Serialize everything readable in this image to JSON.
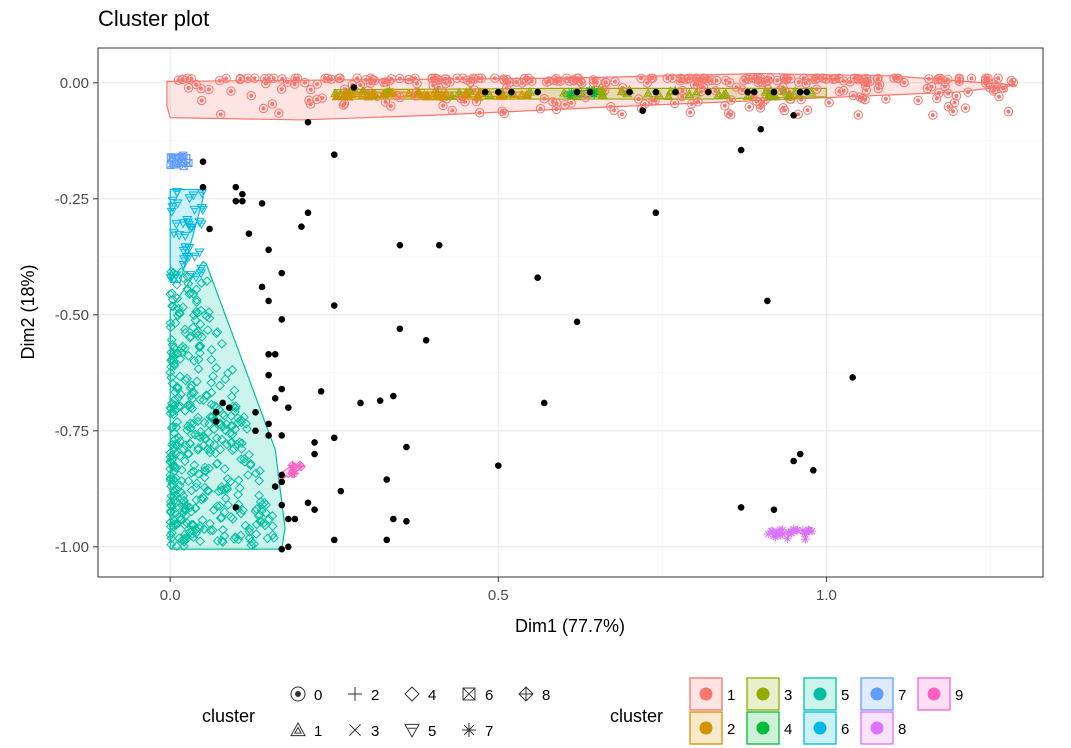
{
  "chart_data": {
    "type": "scatter",
    "title": "Cluster plot",
    "xlabel": "Dim1 (77.7%)",
    "ylabel": "Dim2 (18%)",
    "xlim": [
      -0.11,
      1.33
    ],
    "ylim": [
      -1.065,
      0.075
    ],
    "x_ticks": [
      0.0,
      0.5,
      1.0
    ],
    "x_tick_labels": [
      "0.0",
      "0.5",
      "1.0"
    ],
    "y_ticks": [
      0.0,
      -0.25,
      -0.5,
      -0.75,
      -1.0
    ],
    "y_tick_labels": [
      "0.00",
      "-0.25",
      "-0.50",
      "-0.75",
      "-1.00"
    ],
    "grid": true,
    "legend_placement": "bottom",
    "legend_shape": {
      "title": "cluster",
      "entries": [
        {
          "label": "0",
          "shape": "circle-dot"
        },
        {
          "label": "2",
          "shape": "plus"
        },
        {
          "label": "4",
          "shape": "diamond"
        },
        {
          "label": "6",
          "shape": "square-x"
        },
        {
          "label": "8",
          "shape": "diamond-plus"
        },
        {
          "label": "1",
          "shape": "triangle-nested"
        },
        {
          "label": "3",
          "shape": "cross"
        },
        {
          "label": "5",
          "shape": "triangle-down"
        },
        {
          "label": "7",
          "shape": "asterisk"
        }
      ]
    },
    "legend_color": {
      "title": "cluster",
      "entries": [
        {
          "label": "1",
          "color": "#F8766D"
        },
        {
          "label": "2",
          "color": "#D39200"
        },
        {
          "label": "3",
          "color": "#93AA00"
        },
        {
          "label": "4",
          "color": "#00BA38"
        },
        {
          "label": "5",
          "color": "#00C19F"
        },
        {
          "label": "6",
          "color": "#00B9E3"
        },
        {
          "label": "7",
          "color": "#619CFF"
        },
        {
          "label": "8",
          "color": "#DB72FB"
        },
        {
          "label": "9",
          "color": "#FF61C3"
        }
      ]
    },
    "noise_points": [
      [
        0.28,
        -0.01
      ],
      [
        0.48,
        -0.02
      ],
      [
        0.5,
        -0.02
      ],
      [
        0.52,
        -0.02
      ],
      [
        0.56,
        -0.02
      ],
      [
        0.62,
        -0.02
      ],
      [
        0.64,
        -0.02
      ],
      [
        0.7,
        -0.02
      ],
      [
        0.74,
        -0.02
      ],
      [
        0.77,
        -0.02
      ],
      [
        0.82,
        -0.02
      ],
      [
        0.88,
        -0.02
      ],
      [
        0.89,
        -0.02
      ],
      [
        0.92,
        -0.02
      ],
      [
        0.96,
        -0.02
      ],
      [
        0.97,
        -0.02
      ],
      [
        0.72,
        -0.06
      ],
      [
        0.95,
        -0.07
      ],
      [
        0.9,
        -0.1
      ],
      [
        0.21,
        -0.085
      ],
      [
        0.25,
        -0.155
      ],
      [
        0.87,
        -0.145
      ],
      [
        0.05,
        -0.17
      ],
      [
        0.05,
        -0.225
      ],
      [
        0.1,
        -0.225
      ],
      [
        0.11,
        -0.24
      ],
      [
        0.1,
        -0.255
      ],
      [
        0.11,
        -0.255
      ],
      [
        0.14,
        -0.26
      ],
      [
        0.06,
        -0.315
      ],
      [
        0.12,
        -0.325
      ],
      [
        0.2,
        -0.31
      ],
      [
        0.21,
        -0.28
      ],
      [
        0.15,
        -0.36
      ],
      [
        0.35,
        -0.35
      ],
      [
        0.41,
        -0.35
      ],
      [
        0.17,
        -0.41
      ],
      [
        0.14,
        -0.44
      ],
      [
        0.15,
        -0.47
      ],
      [
        0.25,
        -0.48
      ],
      [
        0.56,
        -0.42
      ],
      [
        0.74,
        -0.28
      ],
      [
        0.91,
        -0.47
      ],
      [
        0.35,
        -0.53
      ],
      [
        0.39,
        -0.555
      ],
      [
        0.62,
        -0.515
      ],
      [
        0.17,
        -0.51
      ],
      [
        0.15,
        -0.585
      ],
      [
        0.16,
        -0.585
      ],
      [
        0.15,
        -0.63
      ],
      [
        0.17,
        -0.66
      ],
      [
        0.23,
        -0.665
      ],
      [
        0.16,
        -0.68
      ],
      [
        0.08,
        -0.69
      ],
      [
        0.07,
        -0.71
      ],
      [
        0.09,
        -0.7
      ],
      [
        0.13,
        -0.71
      ],
      [
        0.18,
        -0.7
      ],
      [
        0.29,
        -0.69
      ],
      [
        0.32,
        -0.685
      ],
      [
        0.34,
        -0.675
      ],
      [
        0.57,
        -0.69
      ],
      [
        1.04,
        -0.635
      ],
      [
        0.07,
        -0.73
      ],
      [
        0.15,
        -0.735
      ],
      [
        0.15,
        -0.76
      ],
      [
        0.13,
        -0.75
      ],
      [
        0.17,
        -0.76
      ],
      [
        0.22,
        -0.775
      ],
      [
        0.25,
        -0.765
      ],
      [
        0.22,
        -0.8
      ],
      [
        0.36,
        -0.785
      ],
      [
        0.5,
        -0.825
      ],
      [
        0.95,
        -0.815
      ],
      [
        0.96,
        -0.8
      ],
      [
        0.98,
        -0.835
      ],
      [
        0.17,
        -0.845
      ],
      [
        0.17,
        -0.86
      ],
      [
        0.16,
        -0.87
      ],
      [
        0.26,
        -0.88
      ],
      [
        0.33,
        -0.855
      ],
      [
        0.1,
        -0.915
      ],
      [
        0.17,
        -0.91
      ],
      [
        0.21,
        -0.905
      ],
      [
        0.22,
        -0.92
      ],
      [
        0.18,
        -0.94
      ],
      [
        0.19,
        -0.94
      ],
      [
        0.34,
        -0.94
      ],
      [
        0.36,
        -0.945
      ],
      [
        0.87,
        -0.915
      ],
      [
        0.92,
        -0.92
      ],
      [
        0.25,
        -0.985
      ],
      [
        0.33,
        -0.985
      ],
      [
        0.18,
        -1.0
      ],
      [
        0.17,
        -1.005
      ]
    ],
    "hulls": [
      {
        "cluster": "1",
        "color": "#F8766D",
        "points": [
          [
            -0.005,
            0.003
          ],
          [
            0.6,
            0.01
          ],
          [
            0.9,
            0.02
          ],
          [
            1.1,
            0.015
          ],
          [
            1.29,
            -0.005
          ],
          [
            1.2,
            -0.02
          ],
          [
            0.7,
            -0.05
          ],
          [
            0.4,
            -0.07
          ],
          [
            0.2,
            -0.08
          ],
          [
            0.0,
            -0.075
          ],
          [
            -0.005,
            -0.05
          ]
        ]
      },
      {
        "cluster": "3",
        "color": "#93AA00",
        "points": [
          [
            0.25,
            -0.015
          ],
          [
            0.6,
            -0.012
          ],
          [
            0.82,
            -0.012
          ],
          [
            1.0,
            -0.012
          ],
          [
            1.0,
            -0.03
          ],
          [
            0.82,
            -0.035
          ],
          [
            0.25,
            -0.035
          ]
        ]
      },
      {
        "cluster": "2",
        "color": "#D39200",
        "points": [
          [
            0.25,
            -0.02
          ],
          [
            0.55,
            -0.02
          ],
          [
            0.55,
            -0.03
          ],
          [
            0.25,
            -0.03
          ]
        ]
      },
      {
        "cluster": "4",
        "color": "#00BA38",
        "points": [
          [
            0.6,
            -0.02
          ],
          [
            0.65,
            -0.015
          ],
          [
            0.65,
            -0.03
          ],
          [
            0.6,
            -0.03
          ]
        ]
      },
      {
        "cluster": "7",
        "color": "#619CFF",
        "points": [
          [
            0.0,
            -0.155
          ],
          [
            0.03,
            -0.155
          ],
          [
            0.03,
            -0.18
          ],
          [
            0.0,
            -0.18
          ]
        ]
      },
      {
        "cluster": "6",
        "color": "#00B9E3",
        "points": [
          [
            0.0,
            -0.23
          ],
          [
            0.05,
            -0.23
          ],
          [
            0.05,
            -0.25
          ],
          [
            0.015,
            -0.43
          ],
          [
            0.0,
            -0.43
          ]
        ]
      },
      {
        "cluster": "5",
        "color": "#00C19F",
        "points": [
          [
            0.0,
            -0.49
          ],
          [
            0.05,
            -0.385
          ],
          [
            0.055,
            -0.39
          ],
          [
            0.16,
            -0.79
          ],
          [
            0.175,
            -0.96
          ],
          [
            0.17,
            -1.005
          ],
          [
            0.0,
            -1.005
          ]
        ]
      },
      {
        "cluster": "9",
        "color": "#FF61C3",
        "points": [
          [
            0.17,
            -0.84
          ],
          [
            0.19,
            -0.82
          ],
          [
            0.2,
            -0.83
          ],
          [
            0.18,
            -0.85
          ]
        ]
      }
    ],
    "cluster_points": [
      {
        "cluster": "1",
        "shape": "circle-dot",
        "color": "#F8766D",
        "x_range": [
          0.0,
          1.29
        ],
        "y_range": [
          -0.07,
          0.01
        ],
        "count": 320
      },
      {
        "cluster": "3",
        "shape": "triangle-nested",
        "color": "#93AA00",
        "x_range": [
          0.25,
          1.0
        ],
        "y_range": [
          -0.03,
          -0.015
        ],
        "count": 60
      },
      {
        "cluster": "2",
        "shape": "triangle-nested",
        "color": "#D39200",
        "x_range": [
          0.25,
          0.55
        ],
        "y_range": [
          -0.03,
          -0.02
        ],
        "count": 40
      },
      {
        "cluster": "4",
        "shape": "asterisk",
        "color": "#00BA38",
        "x_range": [
          0.6,
          0.65
        ],
        "y_range": [
          -0.03,
          -0.015
        ],
        "count": 6
      },
      {
        "cluster": "7",
        "shape": "square-x",
        "color": "#619CFF",
        "x_range": [
          0.0,
          0.03
        ],
        "y_range": [
          -0.18,
          -0.155
        ],
        "count": 12
      },
      {
        "cluster": "6",
        "shape": "triangle-down",
        "color": "#00B9E3",
        "x_range": [
          0.0,
          0.05
        ],
        "y_range": [
          -0.43,
          -0.23
        ],
        "count": 40
      },
      {
        "cluster": "5",
        "shape": "diamond",
        "color": "#00C19F",
        "x_range": [
          0.0,
          0.17
        ],
        "y_range": [
          -1.0,
          -0.39
        ],
        "count": 420
      },
      {
        "cluster": "9",
        "shape": "diamond-plus",
        "color": "#FF61C3",
        "x_range": [
          0.17,
          0.2
        ],
        "y_range": [
          -0.85,
          -0.82
        ],
        "count": 8
      },
      {
        "cluster": "8",
        "shape": "asterisk",
        "color": "#DB72FB",
        "x_range": [
          0.91,
          0.98
        ],
        "y_range": [
          -0.985,
          -0.96
        ],
        "count": 30
      }
    ]
  }
}
